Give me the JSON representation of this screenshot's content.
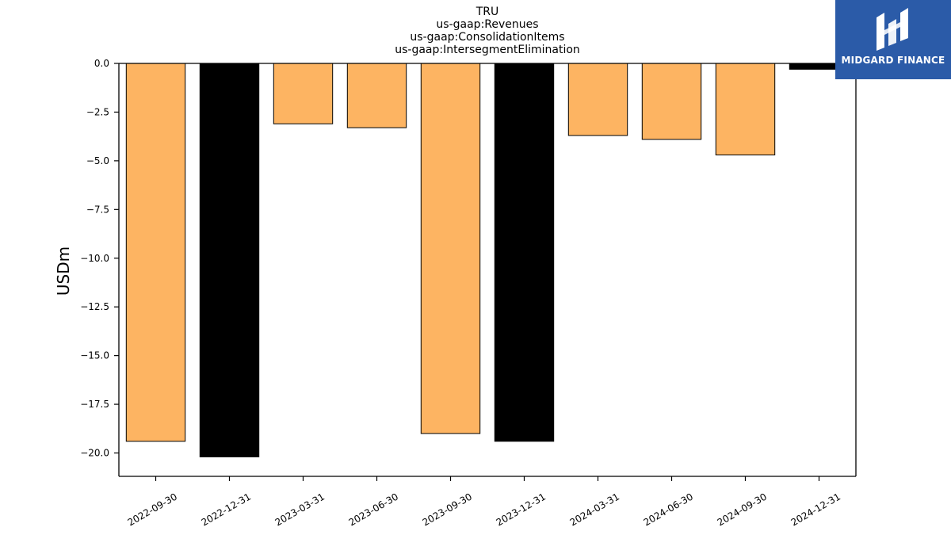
{
  "chart_data": {
    "type": "bar",
    "title_lines": [
      "TRU",
      "us-gaap:Revenues",
      "us-gaap:ConsolidationItems",
      "us-gaap:IntersegmentElimination"
    ],
    "ylabel": "USDm",
    "xlabel": "",
    "categories": [
      "2022-09-30",
      "2022-12-31",
      "2023-03-31",
      "2023-06-30",
      "2023-09-30",
      "2023-12-31",
      "2024-03-31",
      "2024-06-30",
      "2024-09-30",
      "2024-12-31"
    ],
    "values": [
      -19.4,
      -20.2,
      -3.1,
      -3.3,
      -19.0,
      -19.4,
      -3.7,
      -3.9,
      -4.7,
      -0.3
    ],
    "bar_colors": [
      "#fdb462",
      "#000000",
      "#fdb462",
      "#fdb462",
      "#fdb462",
      "#000000",
      "#fdb462",
      "#fdb462",
      "#fdb462",
      "#000000"
    ],
    "ylim": [
      -21.2,
      0.0
    ],
    "yticks": [
      0.0,
      -2.5,
      -5.0,
      -7.5,
      -10.0,
      -12.5,
      -15.0,
      -17.5,
      -20.0
    ],
    "ytick_labels": [
      "0.0",
      "−2.5",
      "−5.0",
      "−7.5",
      "−10.0",
      "−12.5",
      "−15.0",
      "−17.5",
      "−20.0"
    ],
    "grid": false,
    "legend": "none"
  },
  "logo": {
    "text": "MIDGARD FINANCE",
    "color": "#2b5ba8"
  }
}
